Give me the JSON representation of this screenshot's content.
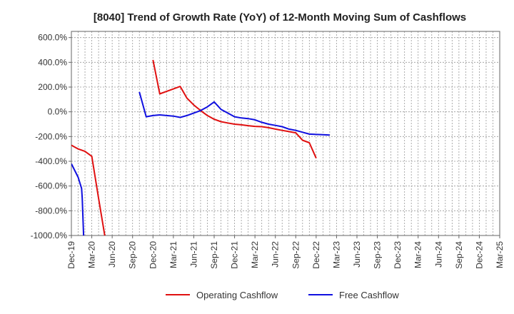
{
  "chart_data": {
    "type": "line",
    "title": "[8040]  Trend of Growth Rate (YoY) of 12-Month Moving Sum of Cashflows",
    "xlabel": "",
    "ylabel": "",
    "ylim": [
      -1000,
      650
    ],
    "y_ticks": [
      600,
      400,
      200,
      0,
      -200,
      -400,
      -600,
      -800,
      -1000
    ],
    "y_tick_labels": [
      "600.0%",
      "400.0%",
      "200.0%",
      "0.0%",
      "-200.0%",
      "-400.0%",
      "-600.0%",
      "-800.0%",
      "-1000.0%"
    ],
    "x_tick_labels": [
      "Dec-19",
      "Mar-20",
      "Jun-20",
      "Sep-20",
      "Dec-20",
      "Mar-21",
      "Jun-21",
      "Sep-21",
      "Dec-21",
      "Mar-22",
      "Jun-22",
      "Sep-22",
      "Dec-22",
      "Mar-23",
      "Jun-23",
      "Sep-23",
      "Dec-23",
      "Mar-24",
      "Jun-24",
      "Sep-24",
      "Dec-24",
      "Mar-25"
    ],
    "grid": true,
    "legend_position": "bottom",
    "series": [
      {
        "name": "Operating Cashflow",
        "color": "#e01010",
        "points": [
          [
            0,
            -270
          ],
          [
            1,
            -300
          ],
          [
            2,
            -320
          ],
          [
            3,
            -360
          ],
          [
            4,
            -700
          ],
          [
            5,
            -1030
          ],
          [
            5.05,
            -1100
          ],
          null,
          [
            12,
            420
          ],
          [
            13,
            145
          ],
          [
            14,
            165
          ],
          [
            15,
            185
          ],
          [
            16,
            205
          ],
          [
            17,
            110
          ],
          [
            18,
            55
          ],
          [
            19,
            10
          ],
          [
            20,
            -30
          ],
          [
            21,
            -60
          ],
          [
            22,
            -80
          ],
          [
            23,
            -90
          ],
          [
            24,
            -100
          ],
          [
            25,
            -105
          ],
          [
            26,
            -112
          ],
          [
            27,
            -118
          ],
          [
            28,
            -120
          ],
          [
            29,
            -128
          ],
          [
            30,
            -140
          ],
          [
            31,
            -150
          ],
          [
            32,
            -160
          ],
          [
            33,
            -170
          ],
          [
            34,
            -230
          ],
          [
            35,
            -250
          ],
          [
            36,
            -375
          ]
        ]
      },
      {
        "name": "Free Cashflow",
        "color": "#1010e0",
        "points": [
          [
            0,
            -420
          ],
          [
            1,
            -530
          ],
          [
            1.5,
            -620
          ],
          [
            1.6,
            -700
          ],
          [
            1.8,
            -1000
          ],
          [
            1.85,
            -1050
          ],
          null,
          [
            10,
            160
          ],
          [
            11,
            -40
          ],
          [
            12,
            -30
          ],
          [
            13,
            -25
          ],
          [
            14,
            -30
          ],
          [
            15,
            -35
          ],
          [
            16,
            -45
          ],
          [
            17,
            -30
          ],
          [
            18,
            -10
          ],
          [
            19,
            10
          ],
          [
            20,
            40
          ],
          [
            21,
            80
          ],
          [
            22,
            20
          ],
          [
            23,
            -10
          ],
          [
            24,
            -40
          ],
          [
            25,
            -50
          ],
          [
            26,
            -55
          ],
          [
            27,
            -65
          ],
          [
            28,
            -85
          ],
          [
            29,
            -100
          ],
          [
            30,
            -110
          ],
          [
            31,
            -120
          ],
          [
            32,
            -140
          ],
          [
            33,
            -150
          ],
          [
            34,
            -165
          ],
          [
            35,
            -180
          ],
          [
            36,
            -183
          ],
          [
            37,
            -185
          ],
          [
            38,
            -188
          ]
        ]
      }
    ]
  }
}
